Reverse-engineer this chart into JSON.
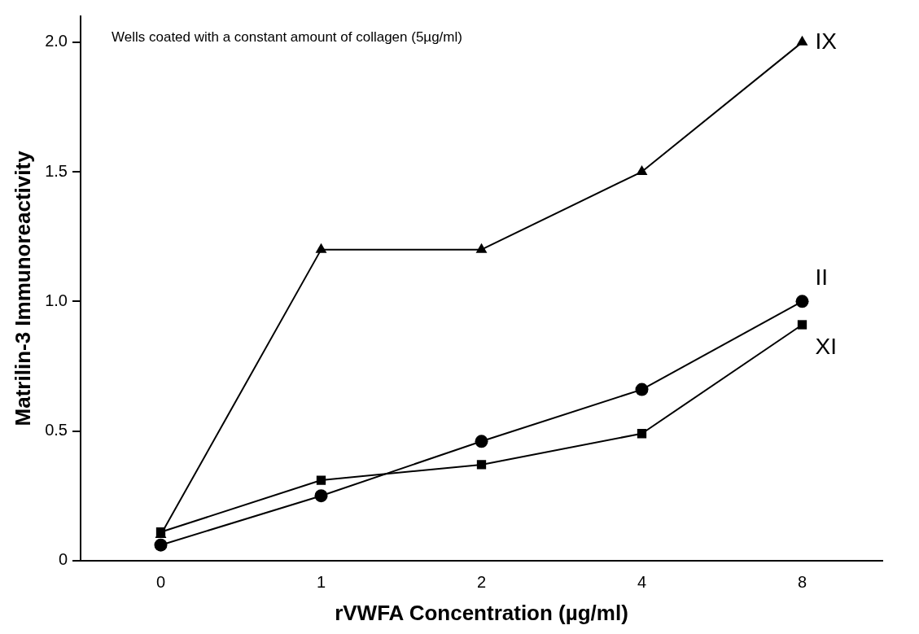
{
  "chart_data": {
    "type": "line",
    "xlabel": "rVWFA Concentration (µg/ml)",
    "ylabel": "Matrilin-3 Immunoreactivity",
    "annotations": [
      "Wells coated with a constant amount of collagen (5µg/ml)"
    ],
    "categories": [
      "0",
      "1",
      "2",
      "4",
      "8"
    ],
    "series": [
      {
        "name": "IX",
        "color": "#000000",
        "marker": "triangle",
        "values": [
          0.1,
          1.2,
          1.2,
          1.5,
          2.0
        ]
      },
      {
        "name": "II",
        "color": "#000000",
        "marker": "circle",
        "values": [
          0.06,
          0.25,
          0.46,
          0.66,
          1.0
        ]
      },
      {
        "name": "XI",
        "color": "#000000",
        "marker": "square",
        "values": [
          0.11,
          0.31,
          0.37,
          0.49,
          0.91
        ]
      }
    ],
    "ylim": [
      0,
      2.1
    ],
    "yticks": [
      0,
      {
        "value": 0.5,
        "label": "0.5"
      },
      {
        "value": 1,
        "label": "1.0"
      },
      {
        "value": 1.5,
        "label": "1.5"
      },
      {
        "value": 2,
        "label": "2.0"
      }
    ],
    "grid": false,
    "legend": false,
    "line_style": "solid"
  }
}
